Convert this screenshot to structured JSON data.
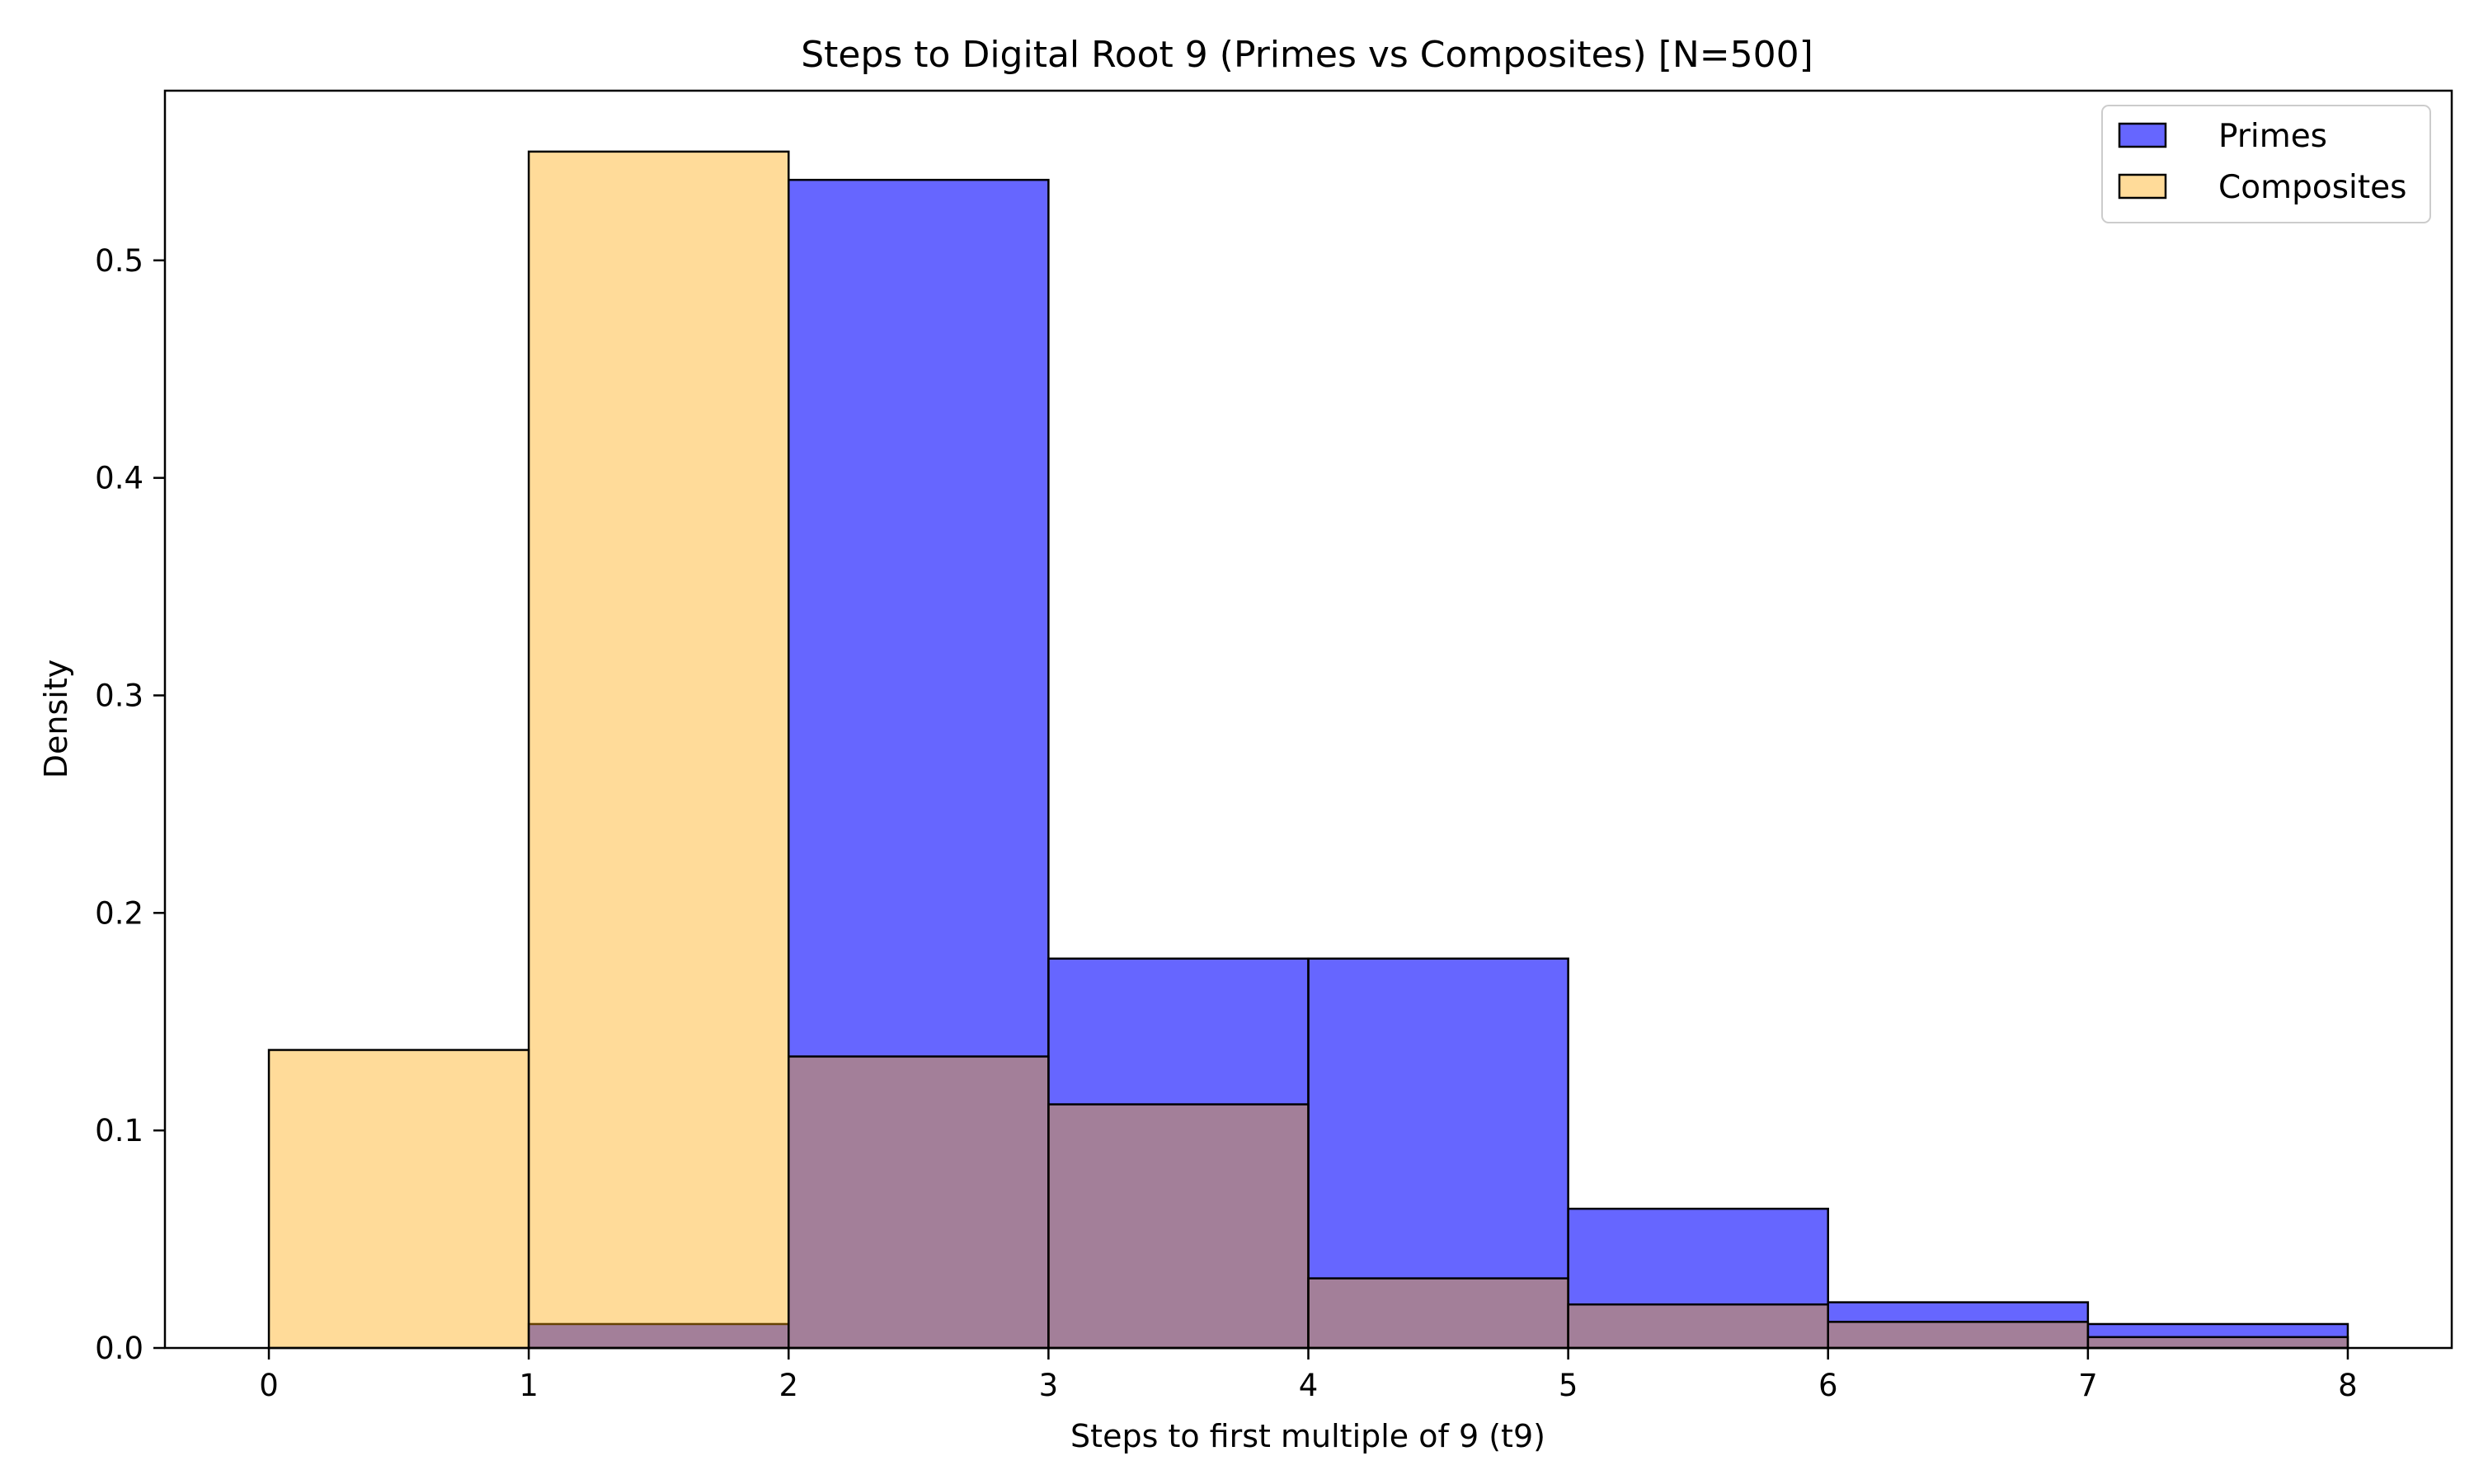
{
  "chart_data": {
    "type": "bar",
    "title": "Steps to Digital Root 9 (Primes vs Composites) [N=500]",
    "xlabel": "Steps to first multiple of 9 (t9)",
    "ylabel": "Density",
    "xlim": [
      -0.4,
      8.4
    ],
    "ylim": [
      0,
      0.578
    ],
    "xticks": [
      "0",
      "1",
      "2",
      "3",
      "4",
      "5",
      "6",
      "7",
      "8"
    ],
    "yticks": [
      "0.0",
      "0.1",
      "0.2",
      "0.3",
      "0.4",
      "0.5"
    ],
    "bin_edges": [
      0,
      1,
      2,
      3,
      4,
      5,
      6,
      7,
      8
    ],
    "grid": false,
    "legend_position": "top-right",
    "series": [
      {
        "name": "Primes",
        "values": [
          0.0,
          0.011,
          0.537,
          0.179,
          0.179,
          0.064,
          0.021,
          0.011
        ],
        "color": "#0000ff",
        "opacity": 0.6
      },
      {
        "name": "Composites",
        "values": [
          0.137,
          0.55,
          0.134,
          0.112,
          0.032,
          0.02,
          0.012,
          0.005
        ],
        "color": "#ffa500",
        "opacity": 0.4
      }
    ]
  }
}
